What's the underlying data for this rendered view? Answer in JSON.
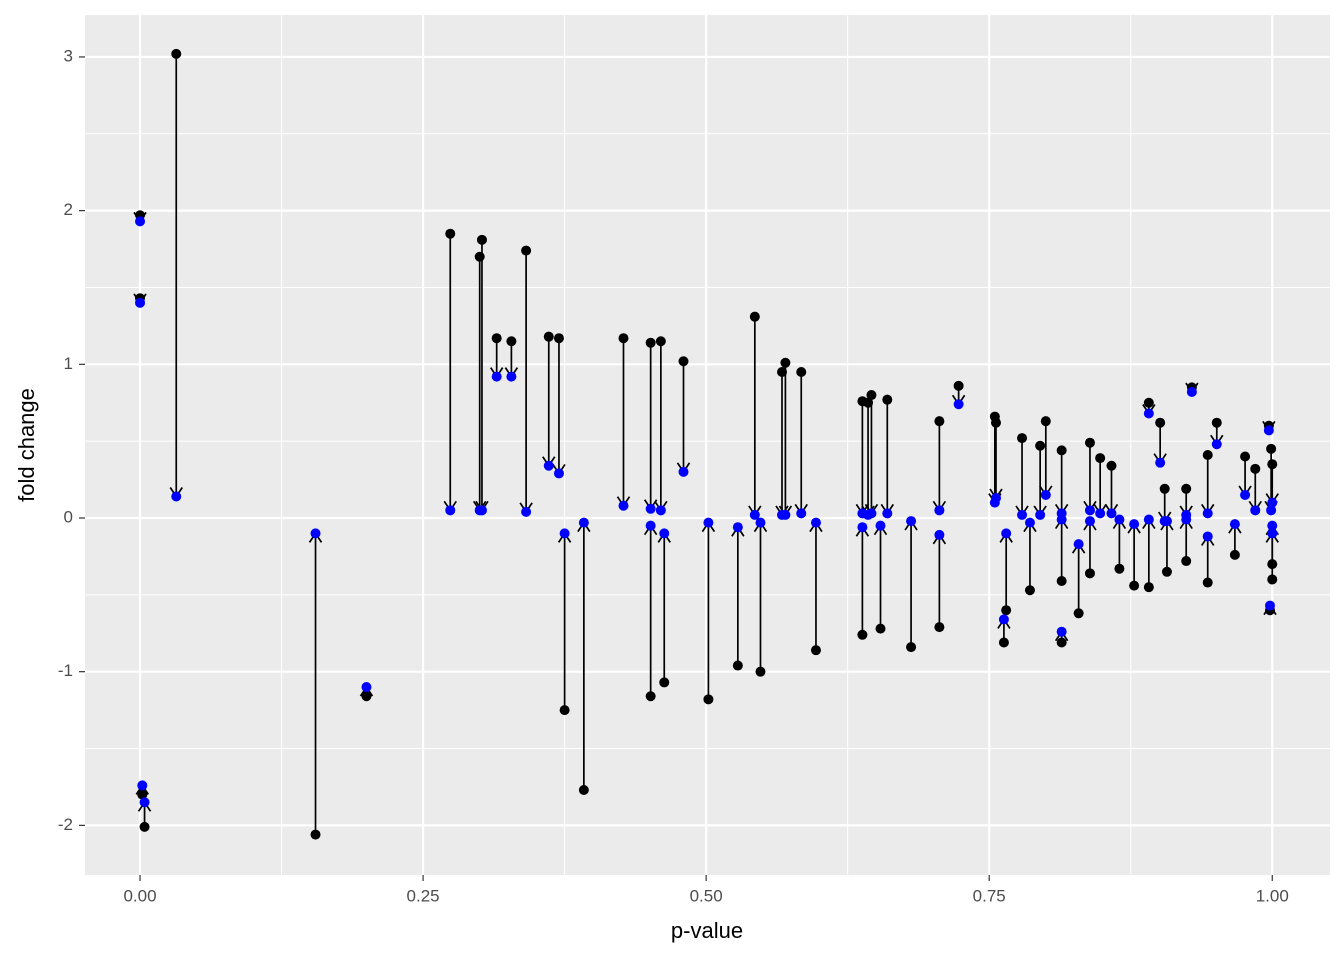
{
  "chart_data": {
    "type": "arrow",
    "x_label": "p-value",
    "y_label": "fold change",
    "x": [
      0.0,
      0.0,
      0.002,
      0.004,
      0.032,
      0.155,
      0.2,
      0.274,
      0.3,
      0.302,
      0.315,
      0.328,
      0.341,
      0.361,
      0.37,
      0.375,
      0.392,
      0.427,
      0.451,
      0.451,
      0.46,
      0.463,
      0.48,
      0.502,
      0.528,
      0.543,
      0.548,
      0.567,
      0.57,
      0.584,
      0.597,
      0.638,
      0.638,
      0.646,
      0.643,
      0.654,
      0.66,
      0.681,
      0.706,
      0.706,
      0.723,
      0.755,
      0.756,
      0.763,
      0.765,
      0.779,
      0.786,
      0.795,
      0.8,
      0.814,
      0.814,
      0.814,
      0.829,
      0.839,
      0.839,
      0.848,
      0.858,
      0.865,
      0.878,
      0.891,
      0.891,
      0.901,
      0.905,
      0.907,
      0.924,
      0.924,
      0.929,
      0.943,
      0.943,
      0.951,
      0.967,
      0.976,
      0.985,
      0.997,
      0.998,
      0.999,
      1.0,
      1.0,
      1.0
    ],
    "y_start": [
      1.97,
      1.43,
      -1.8,
      -2.01,
      3.02,
      -2.06,
      -1.16,
      1.85,
      1.7,
      1.81,
      1.17,
      1.15,
      1.74,
      1.18,
      1.17,
      -1.25,
      -1.77,
      1.17,
      1.14,
      -1.16,
      1.15,
      -1.07,
      1.02,
      -1.18,
      -0.96,
      1.31,
      -1.0,
      0.95,
      1.01,
      0.95,
      -0.86,
      0.76,
      -0.76,
      0.8,
      0.75,
      -0.72,
      0.77,
      -0.84,
      0.63,
      -0.71,
      0.86,
      0.66,
      0.62,
      -0.81,
      -0.6,
      0.52,
      -0.47,
      0.47,
      0.63,
      0.44,
      -0.41,
      -0.81,
      -0.62,
      0.49,
      -0.36,
      0.39,
      0.34,
      -0.33,
      -0.44,
      0.75,
      -0.45,
      0.62,
      0.19,
      -0.35,
      0.19,
      -0.28,
      0.85,
      0.41,
      -0.42,
      0.62,
      -0.24,
      0.4,
      0.32,
      0.6,
      -0.6,
      0.45,
      -0.4,
      0.35,
      -0.3
    ],
    "y_end": [
      1.93,
      1.4,
      -1.74,
      -1.85,
      0.14,
      -0.1,
      -1.1,
      0.05,
      0.05,
      0.05,
      0.92,
      0.92,
      0.04,
      0.34,
      0.29,
      -0.1,
      -0.03,
      0.08,
      0.06,
      -0.05,
      0.05,
      -0.1,
      0.3,
      -0.03,
      -0.06,
      0.02,
      -0.03,
      0.02,
      0.02,
      0.03,
      -0.03,
      0.03,
      -0.06,
      0.03,
      0.02,
      -0.05,
      0.03,
      -0.02,
      0.05,
      -0.11,
      0.74,
      0.1,
      0.13,
      -0.66,
      -0.1,
      0.02,
      -0.03,
      0.02,
      0.15,
      0.03,
      -0.01,
      -0.74,
      -0.17,
      0.05,
      -0.02,
      0.03,
      0.03,
      -0.01,
      -0.04,
      0.68,
      -0.01,
      0.36,
      -0.02,
      -0.02,
      0.02,
      -0.01,
      0.82,
      0.03,
      -0.12,
      0.48,
      -0.04,
      0.15,
      0.05,
      0.57,
      -0.57,
      0.05,
      -0.05,
      0.1,
      -0.1
    ],
    "start_color": "#000000",
    "end_color": "#0000ff",
    "xlim": [
      -0.0486,
      1.051
    ],
    "ylim": [
      -2.323,
      3.273
    ],
    "xticks": [
      {
        "value": 0,
        "label": "0.00"
      },
      {
        "value": 0.25,
        "label": "0.25"
      },
      {
        "value": 0.5,
        "label": "0.50"
      },
      {
        "value": 0.75,
        "label": "0.75"
      },
      {
        "value": 1,
        "label": "1.00"
      }
    ],
    "yticks": [
      -2,
      -1,
      0,
      1,
      2,
      3
    ],
    "x_minor_ticks": [
      0.125,
      0.375,
      0.625,
      0.875
    ],
    "y_minor_ticks": [
      -1.5,
      -0.5,
      0.5,
      1.5,
      2.5
    ],
    "grid": true
  }
}
